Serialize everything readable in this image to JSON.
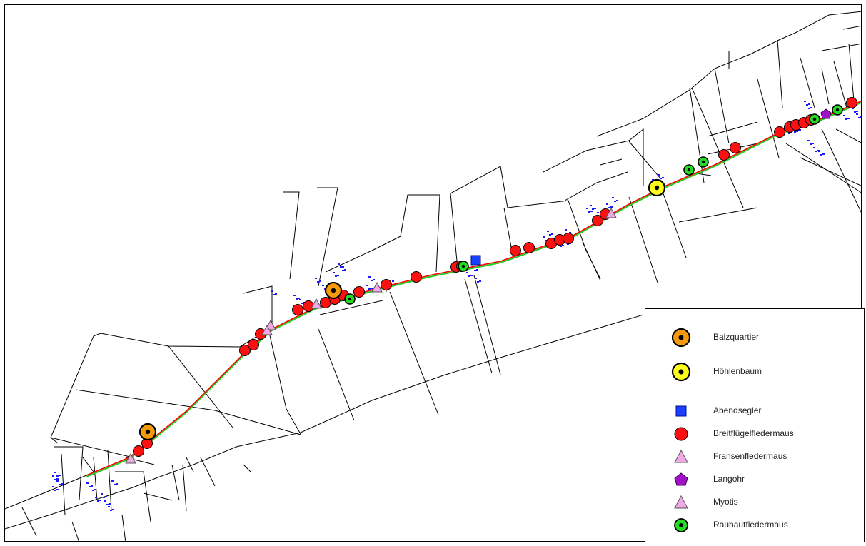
{
  "colors": {
    "parcel": "#000000",
    "route_red": "#ff0000",
    "route_green": "#22cc22",
    "building": "#1a1aff",
    "breitfluegel": "#ff1010",
    "balz": "#f59a0a",
    "hoehlen": "#ffff1a",
    "abend": "#1a40ff",
    "fransen": "#f0a8e6",
    "langohr": "#a010c8",
    "myotis": "#f0a8e6",
    "rauhaut": "#22dd22"
  },
  "legend": {
    "items": [
      {
        "id": "balz",
        "label": "Balzquartier",
        "icon": "orange-ringed-dot-icon"
      },
      {
        "id": "hoehlen",
        "label": "Höhlenbaum",
        "icon": "yellow-ringed-dot-icon"
      },
      {
        "id": "abend",
        "label": "Abendsegler",
        "icon": "blue-square-icon"
      },
      {
        "id": "breit",
        "label": "Breitflügelfledermaus",
        "icon": "red-circle-icon"
      },
      {
        "id": "fransen",
        "label": "Fransenfledermaus",
        "icon": "pink-triangle-icon"
      },
      {
        "id": "langohr",
        "label": "Langohr",
        "icon": "purple-pentagon-icon"
      },
      {
        "id": "myotis",
        "label": "Myotis",
        "icon": "pink-triangle-icon"
      },
      {
        "id": "rauhaut",
        "label": "Rauhautfledermaus",
        "icon": "green-ringed-dot-icon"
      }
    ]
  }
}
